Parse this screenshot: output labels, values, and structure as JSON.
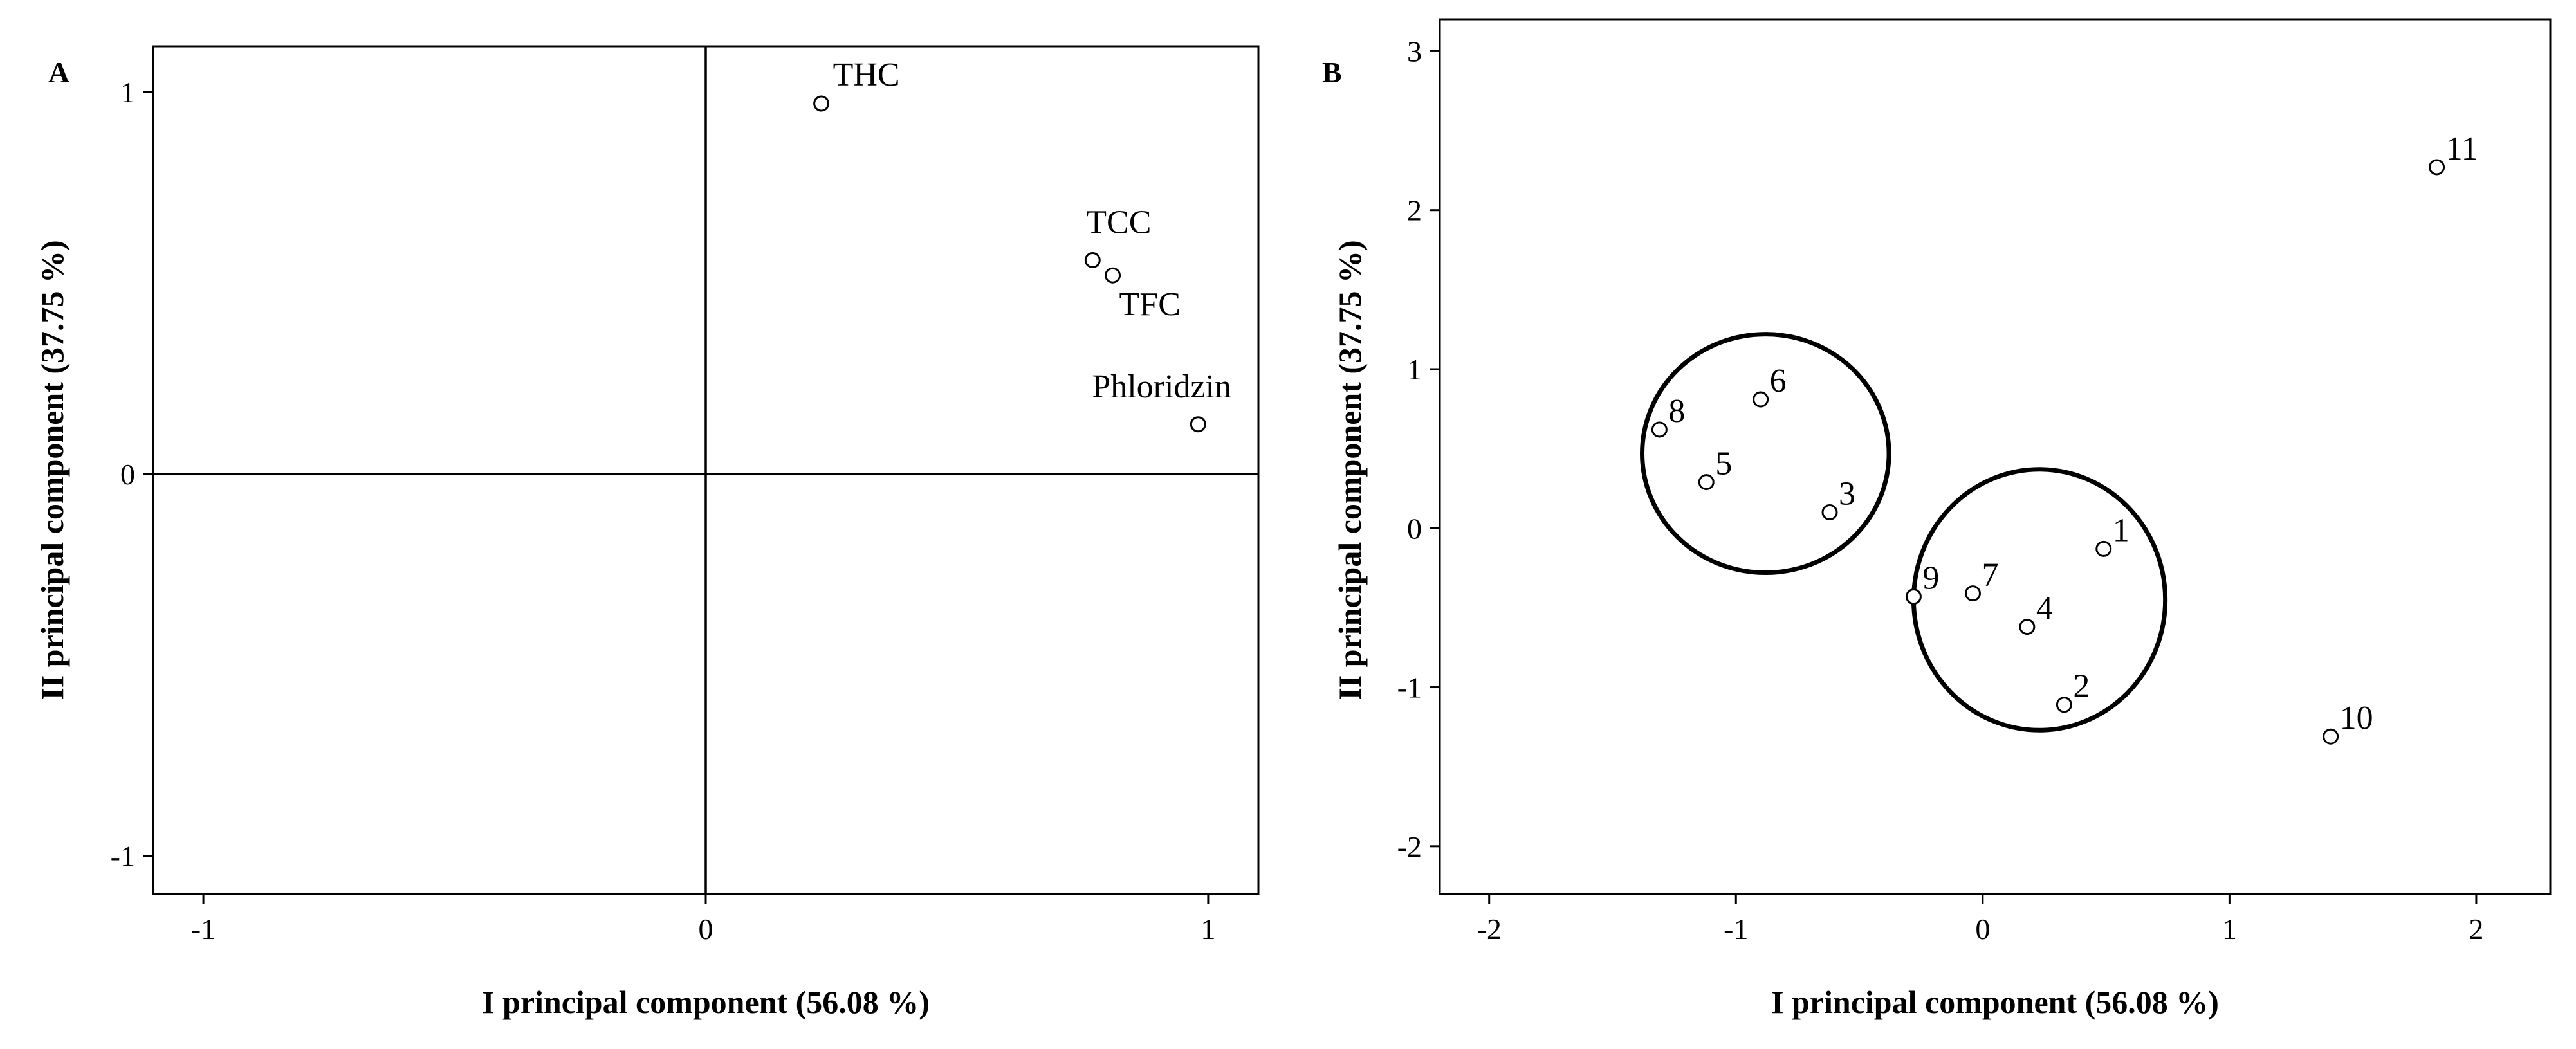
{
  "chart_data": [
    {
      "panel": "A",
      "type": "scatter",
      "title": "",
      "xlabel": "I principal component (56.08 %)",
      "ylabel": "II principal component (37.75 %)",
      "xlim": [
        -1.1,
        1.1
      ],
      "ylim": [
        -1.1,
        1.12
      ],
      "xticks": [
        -1,
        0,
        1
      ],
      "yticks": [
        -1,
        0,
        1
      ],
      "xtick_labels": [
        "-1",
        "0",
        "1"
      ],
      "ytick_labels": [
        "-1",
        "0",
        "1"
      ],
      "reference_lines": {
        "x": 0,
        "y": 0
      },
      "grid": false,
      "points": [
        {
          "label": "THC",
          "x": 0.23,
          "y": 0.97
        },
        {
          "label": "TCC",
          "x": 0.77,
          "y": 0.56
        },
        {
          "label": "TFC",
          "x": 0.81,
          "y": 0.52
        },
        {
          "label": "Phloridzin",
          "x": 0.98,
          "y": 0.13
        }
      ]
    },
    {
      "panel": "B",
      "type": "scatter",
      "title": "",
      "xlabel": "I principal component (56.08 %)",
      "ylabel": "II principal component (37.75 %)",
      "xlim": [
        -2.2,
        2.3
      ],
      "ylim": [
        -2.3,
        3.2
      ],
      "xticks": [
        -2,
        -1,
        0,
        1,
        2
      ],
      "yticks": [
        -2,
        -1,
        0,
        1,
        2,
        3
      ],
      "xtick_labels": [
        "-2",
        "-1",
        "0",
        "1",
        "2"
      ],
      "ytick_labels": [
        "-2",
        "-1",
        "0",
        "1",
        "2",
        "3"
      ],
      "grid": false,
      "points": [
        {
          "label": "1",
          "x": 0.49,
          "y": -0.13
        },
        {
          "label": "2",
          "x": 0.33,
          "y": -1.11
        },
        {
          "label": "3",
          "x": -0.62,
          "y": 0.1
        },
        {
          "label": "4",
          "x": 0.18,
          "y": -0.62
        },
        {
          "label": "5",
          "x": -1.12,
          "y": 0.29
        },
        {
          "label": "6",
          "x": -0.9,
          "y": 0.81
        },
        {
          "label": "7",
          "x": -0.04,
          "y": -0.41
        },
        {
          "label": "8",
          "x": -1.31,
          "y": 0.62
        },
        {
          "label": "9",
          "x": -0.28,
          "y": -0.43
        },
        {
          "label": "10",
          "x": 1.41,
          "y": -1.31
        },
        {
          "label": "11",
          "x": 1.84,
          "y": 2.27
        }
      ],
      "clusters": [
        {
          "cx": -0.88,
          "cy": 0.47,
          "rx": 0.5,
          "ry": 0.75
        },
        {
          "cx": 0.23,
          "cy": -0.45,
          "rx": 0.51,
          "ry": 0.82
        }
      ]
    }
  ]
}
